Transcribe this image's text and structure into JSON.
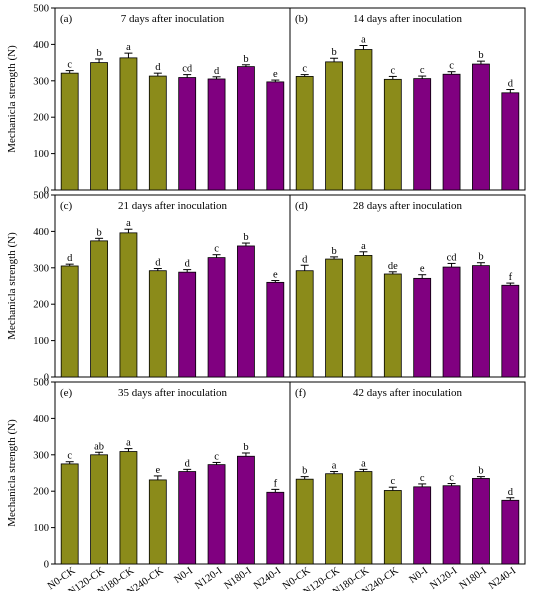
{
  "colors": {
    "ck": "#8b8b1a",
    "inoc": "#800080",
    "axis": "#000000"
  },
  "ylabel": "Mechanicla strength (N)",
  "categories": [
    "N0-CK",
    "N120-CK",
    "N180-CK",
    "N240-CK",
    "N0-I",
    "N120-I",
    "N180-I",
    "N240-I"
  ],
  "yticks": [
    "0",
    "100",
    "200",
    "300",
    "400",
    "500"
  ],
  "chart_data": [
    {
      "type": "bar",
      "panel": "(a)",
      "title": "7 days after inoculation",
      "ylabel": "Mechanicla strength (N)",
      "ylim": [
        0,
        500
      ],
      "categories": [
        "N0-CK",
        "N120-CK",
        "N180-CK",
        "N240-CK",
        "N0-I",
        "N120-I",
        "N180-I",
        "N240-I"
      ],
      "values": [
        321,
        350,
        363,
        313,
        309,
        305,
        339,
        297
      ],
      "errors": [
        7,
        10,
        13,
        8,
        8,
        6,
        5,
        5
      ],
      "labels": [
        "c",
        "b",
        "a",
        "d",
        "cd",
        "d",
        "b",
        "e"
      ]
    },
    {
      "type": "bar",
      "panel": "(b)",
      "title": "14 days after inoculation",
      "ylim": [
        0,
        500
      ],
      "categories": [
        "N0-CK",
        "N120-CK",
        "N180-CK",
        "N240-CK",
        "N0-I",
        "N120-I",
        "N180-I",
        "N240-I"
      ],
      "values": [
        312,
        352,
        386,
        304,
        306,
        318,
        346,
        267
      ],
      "errors": [
        5,
        10,
        11,
        8,
        7,
        7,
        8,
        9
      ],
      "labels": [
        "c",
        "b",
        "a",
        "c",
        "c",
        "c",
        "b",
        "d"
      ]
    },
    {
      "type": "bar",
      "panel": "(c)",
      "title": "21 days after inoculation",
      "ylabel": "Mechanicla strength (N)",
      "ylim": [
        0,
        500
      ],
      "categories": [
        "N0-CK",
        "N120-CK",
        "N180-CK",
        "N240-CK",
        "N0-I",
        "N120-I",
        "N180-I",
        "N240-I"
      ],
      "values": [
        305,
        374,
        396,
        292,
        288,
        328,
        360,
        260
      ],
      "errors": [
        5,
        7,
        10,
        6,
        7,
        8,
        8,
        5
      ],
      "labels": [
        "d",
        "b",
        "a",
        "d",
        "d",
        "c",
        "b",
        "e"
      ]
    },
    {
      "type": "bar",
      "panel": "(d)",
      "title": "28 days after inoculation",
      "ylim": [
        0,
        500
      ],
      "categories": [
        "N0-CK",
        "N120-CK",
        "N180-CK",
        "N240-CK",
        "N0-I",
        "N120-I",
        "N180-I",
        "N240-I"
      ],
      "values": [
        292,
        324,
        334,
        283,
        271,
        302,
        306,
        252
      ],
      "errors": [
        15,
        6,
        10,
        6,
        10,
        10,
        8,
        6
      ],
      "labels": [
        "d",
        "b",
        "a",
        "de",
        "e",
        "cd",
        "b",
        "f"
      ]
    },
    {
      "type": "bar",
      "panel": "(e)",
      "title": "35 days after inoculation",
      "ylabel": "Mechanicla strength (N)",
      "ylim": [
        0,
        500
      ],
      "categories": [
        "N0-CK",
        "N120-CK",
        "N180-CK",
        "N240-CK",
        "N0-I",
        "N120-I",
        "N180-I",
        "N240-I"
      ],
      "values": [
        275,
        300,
        309,
        231,
        254,
        273,
        296,
        197
      ],
      "errors": [
        6,
        7,
        8,
        11,
        6,
        6,
        9,
        8
      ],
      "labels": [
        "c",
        "ab",
        "a",
        "e",
        "d",
        "c",
        "b",
        "f"
      ]
    },
    {
      "type": "bar",
      "panel": "(f)",
      "title": "42 days after inoculation",
      "ylim": [
        0,
        500
      ],
      "categories": [
        "N0-CK",
        "N120-CK",
        "N180-CK",
        "N240-CK",
        "N0-I",
        "N120-I",
        "N180-I",
        "N240-I"
      ],
      "values": [
        233,
        248,
        254,
        202,
        212,
        215,
        235,
        175
      ],
      "errors": [
        7,
        6,
        6,
        9,
        8,
        6,
        5,
        7
      ],
      "labels": [
        "b",
        "a",
        "a",
        "c",
        "c",
        "c",
        "b",
        "d"
      ]
    }
  ]
}
